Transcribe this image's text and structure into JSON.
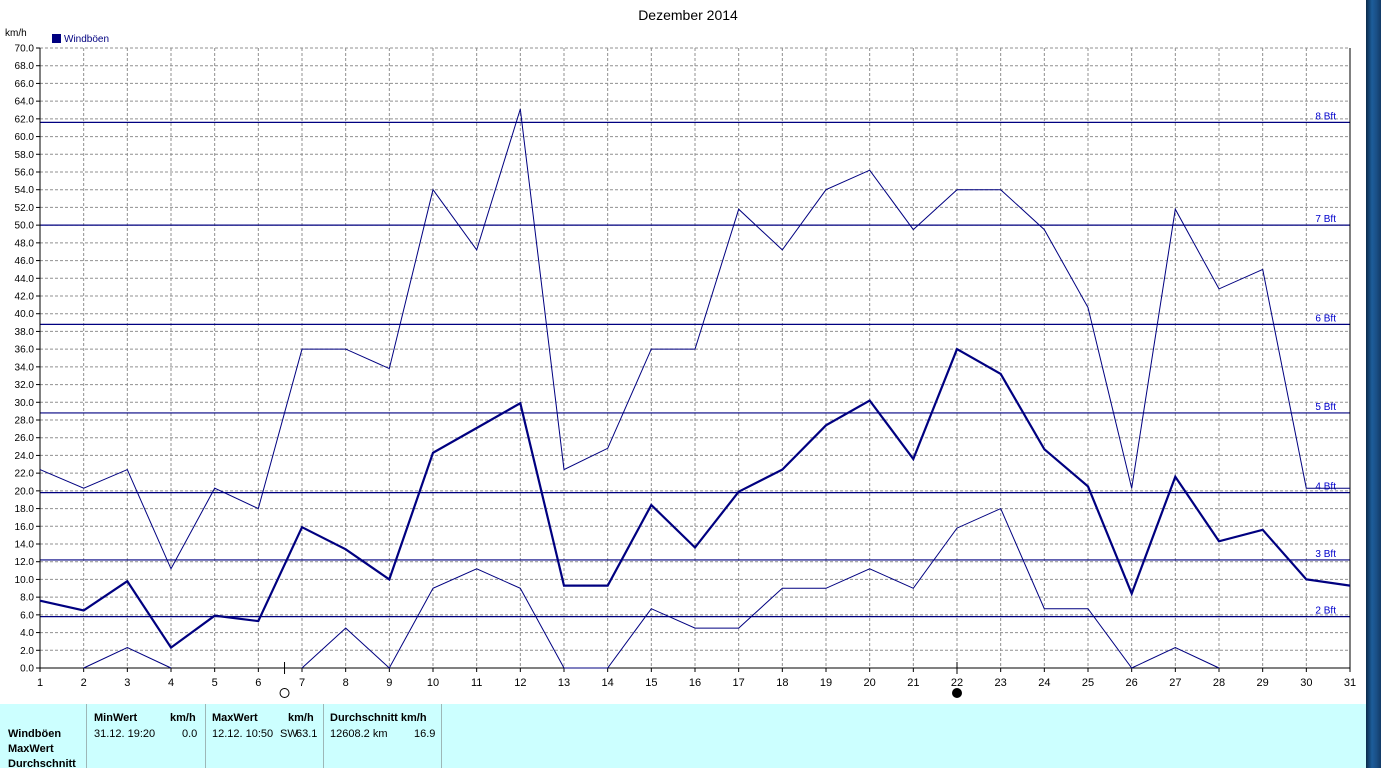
{
  "chart_data": {
    "type": "line",
    "title": "Dezember 2014",
    "ylabel": "km/h",
    "ylim": [
      0,
      70
    ],
    "ytick_step": 2,
    "grid": true,
    "legend": {
      "label": "Windböen",
      "placement": "top-left"
    },
    "x": [
      1,
      2,
      3,
      4,
      5,
      6,
      7,
      8,
      9,
      10,
      11,
      12,
      13,
      14,
      15,
      16,
      17,
      18,
      19,
      20,
      21,
      22,
      23,
      24,
      25,
      26,
      27,
      28,
      29,
      30,
      31
    ],
    "xtick_labels": [
      "1",
      "2",
      "3",
      "4",
      "5",
      "6",
      "7",
      "8",
      "9",
      "10",
      "11",
      "12",
      "13",
      "14",
      "15",
      "16",
      "17",
      "18",
      "19",
      "20",
      "21",
      "22",
      "23",
      "24",
      "25",
      "26",
      "27",
      "28",
      "29",
      "30",
      "31"
    ],
    "beaufort_lines": [
      {
        "label": "2 Bft",
        "value": 5.8
      },
      {
        "label": "3 Bft",
        "value": 12.2
      },
      {
        "label": "4 Bft",
        "value": 19.8
      },
      {
        "label": "5 Bft",
        "value": 28.8
      },
      {
        "label": "6 Bft",
        "value": 38.8
      },
      {
        "label": "7 Bft",
        "value": 50.0
      },
      {
        "label": "8 Bft",
        "value": 61.6
      }
    ],
    "moon_phases": [
      {
        "day": 6.6,
        "phase": "full"
      },
      {
        "day": 22,
        "phase": "new"
      }
    ],
    "series": [
      {
        "role": "max",
        "values": [
          22.4,
          20.3,
          22.4,
          11.2,
          20.3,
          18.0,
          36.0,
          36.0,
          33.8,
          54.0,
          47.2,
          63.1,
          22.4,
          24.8,
          36.0,
          36.0,
          51.8,
          47.2,
          54.0,
          56.2,
          49.5,
          54.0,
          54.0,
          49.5,
          40.7,
          20.3,
          51.8,
          42.8,
          45.0,
          20.3,
          20.3
        ]
      },
      {
        "role": "avg",
        "values": [
          7.6,
          6.5,
          9.8,
          2.3,
          5.9,
          5.3,
          15.9,
          13.4,
          10.0,
          24.3,
          27.1,
          29.9,
          9.3,
          9.3,
          18.4,
          13.6,
          19.9,
          22.4,
          27.4,
          30.2,
          23.6,
          36.0,
          33.2,
          24.7,
          20.5,
          8.4,
          21.6,
          14.3,
          15.6,
          10.0,
          9.3
        ]
      },
      {
        "role": "min",
        "values": [
          null,
          0.0,
          2.3,
          0.0,
          null,
          null,
          0.0,
          4.5,
          0.0,
          9.0,
          11.2,
          9.0,
          0.0,
          0.0,
          6.7,
          4.5,
          4.5,
          9.0,
          9.0,
          11.2,
          9.0,
          15.8,
          18.0,
          6.7,
          6.7,
          0.0,
          2.3,
          0.0,
          null,
          null,
          null
        ]
      }
    ],
    "colors": {
      "axis": "#000000",
      "grid": "#909090",
      "series": "#000080",
      "bft": "#000080",
      "bft_label": "#0000cc"
    }
  },
  "footer": {
    "row_labels": [
      "Windböen",
      "MaxWert",
      "Durchschnitt"
    ],
    "min": {
      "header": "MinWert",
      "unit": "km/h",
      "datetime": "31.12.  19:20",
      "value": "0.0"
    },
    "max": {
      "header": "MaxWert",
      "unit": "km/h",
      "datetime": "12.12.  10:50",
      "dir": "SW",
      "value": "63.1"
    },
    "avg": {
      "header": "Durchschnitt km/h",
      "distance": "12608.2 km",
      "value": "16.9"
    },
    "colors": {
      "background": "#ccffff"
    }
  }
}
